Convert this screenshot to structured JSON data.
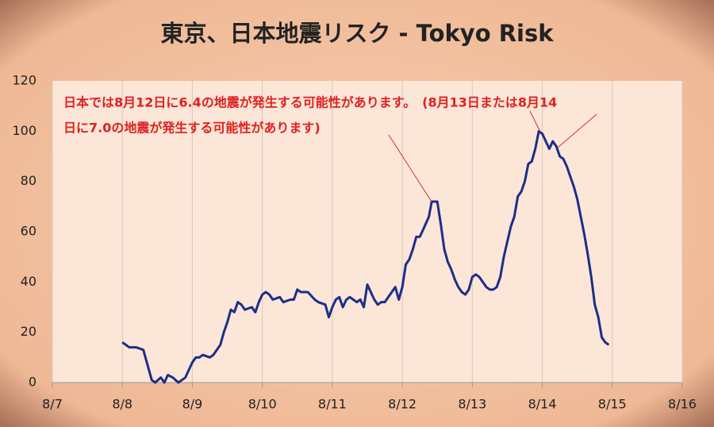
{
  "chart_data": {
    "type": "line",
    "title": "東京、日本地震リスク - Tokyo Risk",
    "annotations": [
      "日本では8月12日に6.4の地震が発生する可能性があります。　(8月13日または8月14",
      "日に7.0の地震が発生する可能性があります)"
    ],
    "x": [
      8.0,
      8.05,
      8.1,
      8.2,
      8.3,
      8.35,
      8.42,
      8.47,
      8.55,
      8.6,
      8.65,
      8.72,
      8.8,
      8.9,
      9.0,
      9.05,
      9.1,
      9.15,
      9.25,
      9.3,
      9.4,
      9.45,
      9.5,
      9.55,
      9.6,
      9.65,
      9.7,
      9.75,
      9.85,
      9.9,
      9.95,
      10.0,
      10.05,
      10.1,
      10.15,
      10.25,
      10.3,
      10.4,
      10.45,
      10.5,
      10.55,
      10.65,
      10.75,
      10.8,
      10.9,
      10.95,
      11.0,
      11.05,
      11.1,
      11.15,
      11.2,
      11.25,
      11.3,
      11.35,
      11.4,
      11.45,
      11.5,
      11.55,
      11.6,
      11.65,
      11.7,
      11.75,
      11.85,
      11.9,
      11.95,
      12.0,
      12.05,
      12.1,
      12.15,
      12.2,
      12.25,
      12.3,
      12.38,
      12.42,
      12.5,
      12.55,
      12.6,
      12.65,
      12.7,
      12.75,
      12.8,
      12.85,
      12.9,
      12.95,
      13.0,
      13.05,
      13.1,
      13.15,
      13.2,
      13.25,
      13.3,
      13.35,
      13.4,
      13.45,
      13.5,
      13.55,
      13.6,
      13.65,
      13.7,
      13.75,
      13.8,
      13.85,
      13.9,
      13.95,
      14.0,
      14.05,
      14.1,
      14.15,
      14.2,
      14.25,
      14.3,
      14.35,
      14.4,
      14.45,
      14.5,
      14.55,
      14.6,
      14.65,
      14.7,
      14.75,
      14.8,
      14.85,
      14.9,
      14.95
    ],
    "series": [
      {
        "name": "Tokyo Risk",
        "color": "#1b2f86",
        "values": [
          16,
          15,
          14,
          14,
          13,
          8,
          1,
          0,
          2,
          0,
          3,
          2,
          0,
          2,
          8,
          10,
          10,
          11,
          10,
          11,
          15,
          20,
          24,
          29,
          28,
          32,
          31,
          29,
          30,
          28,
          32,
          35,
          36,
          35,
          33,
          34,
          32,
          33,
          33,
          37,
          36,
          36,
          33,
          32,
          31,
          26,
          30,
          33,
          34,
          30,
          33,
          34,
          33,
          32,
          33,
          30,
          39,
          36,
          33,
          31,
          32,
          32,
          36,
          38,
          33,
          38,
          47,
          49,
          53,
          58,
          58,
          61,
          66,
          72,
          72,
          63,
          53,
          48,
          45,
          41,
          38,
          36,
          35,
          37,
          42,
          43,
          42,
          40,
          38,
          37,
          37,
          38,
          42,
          50,
          56,
          62,
          66,
          74,
          76,
          80,
          87,
          88,
          93,
          100,
          99,
          96,
          93,
          96,
          94,
          90,
          89,
          86,
          82,
          78,
          73,
          66,
          59,
          51,
          42,
          31,
          26,
          18,
          16,
          15
        ]
      }
    ],
    "xlim": [
      7,
      16
    ],
    "xticks": [
      {
        "value": 7,
        "label": "8/7"
      },
      {
        "value": 8,
        "label": "8/8"
      },
      {
        "value": 9,
        "label": "8/9"
      },
      {
        "value": 10,
        "label": "8/10"
      },
      {
        "value": 11,
        "label": "8/11"
      },
      {
        "value": 12,
        "label": "8/12"
      },
      {
        "value": 13,
        "label": "8/13"
      },
      {
        "value": 14,
        "label": "8/14"
      },
      {
        "value": 15,
        "label": "8/15"
      },
      {
        "value": 16,
        "label": "8/16"
      }
    ],
    "ylim": [
      0,
      120
    ],
    "yticks": [
      0,
      20,
      40,
      60,
      80,
      100,
      120
    ],
    "grid": true
  }
}
